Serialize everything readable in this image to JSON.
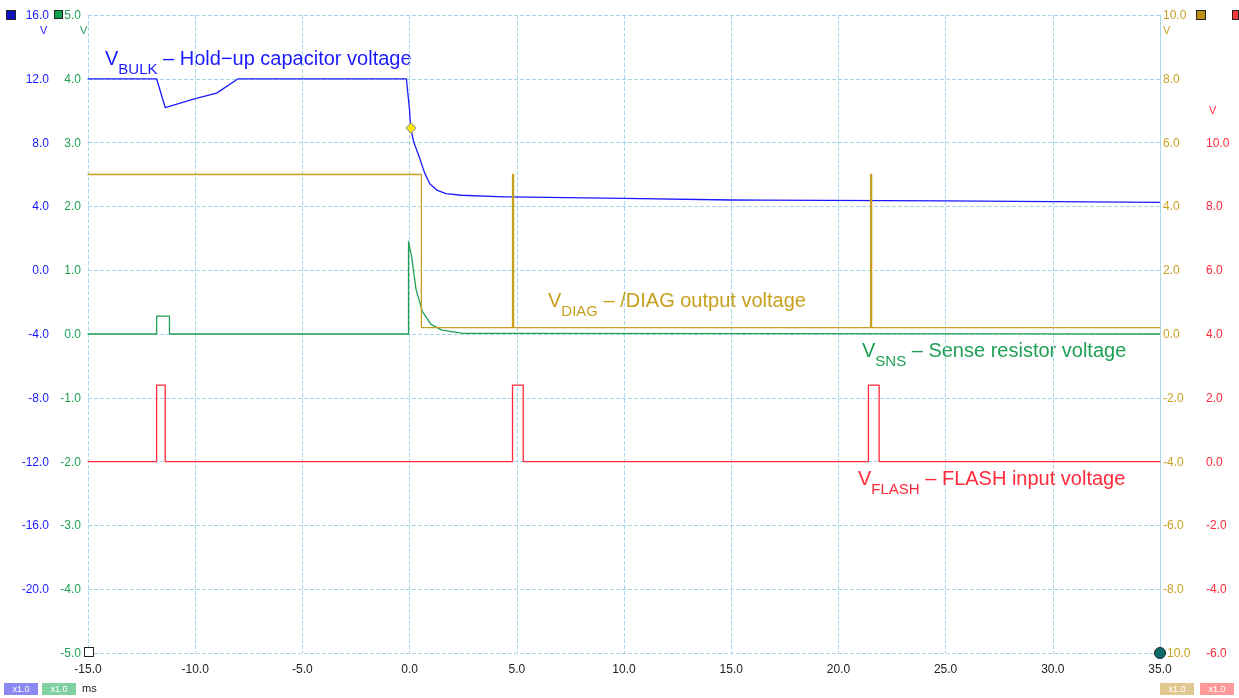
{
  "chart_data": [
    {
      "type": "line",
      "xlabel": "ms",
      "ylabel": "V",
      "y2label": "V",
      "xlim": [
        -15,
        35
      ],
      "xticks": [
        {
          "value": -15,
          "label": "-15.0"
        },
        {
          "value": -10,
          "label": "-10.0"
        },
        {
          "value": -5,
          "label": "-5.0"
        },
        {
          "value": 0,
          "label": "0.0"
        },
        {
          "value": 5,
          "label": "5.0"
        },
        {
          "value": 10,
          "label": "10.0"
        },
        {
          "value": 15,
          "label": "15.0"
        },
        {
          "value": 20,
          "label": "20.0"
        },
        {
          "value": 25,
          "label": "25.0"
        },
        {
          "value": 30,
          "label": "30.0"
        },
        {
          "value": 35,
          "label": "35.0"
        }
      ],
      "ylim": [
        -24,
        16
      ],
      "yticks": [
        {
          "value": -20,
          "label": "-20.0"
        },
        {
          "value": -16,
          "label": "-16.0"
        },
        {
          "value": -12,
          "label": "-12.0"
        },
        {
          "value": -8,
          "label": "-8.0"
        },
        {
          "value": -4,
          "label": "-4.0"
        },
        {
          "value": 0,
          "label": "0.0"
        },
        {
          "value": 4,
          "label": "4.0"
        },
        {
          "value": 8,
          "label": "8.0"
        },
        {
          "value": 12,
          "label": "12.0"
        },
        {
          "value": 16,
          "label": "16.0"
        }
      ],
      "y2lim": [
        -5,
        5
      ],
      "y2ticks": [
        {
          "value": -5,
          "label": "-5.0"
        },
        {
          "value": -4,
          "label": "-4.0"
        },
        {
          "value": -3,
          "label": "-3.0"
        },
        {
          "value": -2,
          "label": "-2.0"
        },
        {
          "value": -1,
          "label": "-1.0"
        },
        {
          "value": 0,
          "label": "0.0"
        },
        {
          "value": 1,
          "label": "1.0"
        },
        {
          "value": 2,
          "label": "2.0"
        },
        {
          "value": 3,
          "label": "3.0"
        },
        {
          "value": 4,
          "label": "4.0"
        },
        {
          "value": 5,
          "label": "5.0"
        }
      ],
      "grid": true,
      "legend": false,
      "marker": "none",
      "line_style": "solid",
      "annotations": [
        "x1.0",
        "x1.0"
      ],
      "series": [
        {
          "name": "V$_{BULK}$ – Hold−up capacitor voltage",
          "color": "#1a1aff",
          "x": [
            -15,
            -11.8,
            -11.4,
            -10,
            -9,
            -8,
            -0.15,
            0,
            0.05,
            0.2,
            0.45,
            0.7,
            0.95,
            1.3,
            1.7,
            2.4,
            4.4,
            10,
            15,
            25,
            35
          ],
          "values": [
            12,
            12,
            10.2,
            10.75,
            11.1,
            12,
            12,
            10,
            8.9,
            8,
            7.1,
            6.1,
            5.4,
            5,
            4.8,
            4.7,
            4.6,
            4.5,
            4.4,
            4.35,
            4.25
          ]
        },
        {
          "name": "V$_{SNS}$ – Sense resistor voltage",
          "color": "#1fa055",
          "axis": "y2",
          "x": [
            -15,
            -11.8,
            -11.8,
            -11.2,
            -11.2,
            -0.05,
            -0.05,
            0.1,
            0.3,
            0.6,
            1,
            1.5,
            2.5,
            35
          ],
          "values": [
            0,
            0,
            0.28,
            0.28,
            0,
            0,
            1.45,
            1.2,
            0.7,
            0.35,
            0.15,
            0.06,
            0.01,
            0
          ]
        }
      ]
    },
    {
      "type": "line",
      "ylabel": "V",
      "y2label": "V",
      "xlim": [
        -15,
        35
      ],
      "tick_labels": "y",
      "ylim": [
        -10,
        10
      ],
      "yticks": [
        {
          "value": -10,
          "label": "-10.0"
        },
        {
          "value": -8,
          "label": "-8.0"
        },
        {
          "value": -6,
          "label": "-6.0"
        },
        {
          "value": -4,
          "label": "-4.0"
        },
        {
          "value": -2,
          "label": "-2.0"
        },
        {
          "value": 0,
          "label": "0.0"
        },
        {
          "value": 2,
          "label": "2.0"
        },
        {
          "value": 4,
          "label": "4.0"
        },
        {
          "value": 6,
          "label": "6.0"
        },
        {
          "value": 8,
          "label": "8.0"
        },
        {
          "value": 10,
          "label": "10.0"
        }
      ],
      "y2lim": [
        -6,
        14
      ],
      "y2ticks": [
        {
          "value": -6,
          "label": "-6.0"
        },
        {
          "value": -4,
          "label": "-4.0"
        },
        {
          "value": -2,
          "label": "-2.0"
        },
        {
          "value": 0,
          "label": "0.0"
        },
        {
          "value": 2,
          "label": "2.0"
        },
        {
          "value": 4,
          "label": "4.0"
        },
        {
          "value": 6,
          "label": "6.0"
        },
        {
          "value": 8,
          "label": "8.0"
        },
        {
          "value": 10,
          "label": "10.0"
        }
      ],
      "legend": false,
      "marker": "none",
      "line_style": "solid",
      "annotations": [
        "x1.0",
        "x1.0"
      ],
      "series": [
        {
          "name": "V$_{DIAG}$ – /DIAG output voltage",
          "color": "#c8a020",
          "x": [
            -15,
            0.55,
            0.55,
            4.8,
            4.8,
            4.85,
            4.85,
            21.5,
            21.5,
            21.55,
            21.55,
            35
          ],
          "values": [
            5,
            5,
            0.2,
            0.2,
            5,
            5,
            0.2,
            0.2,
            5,
            5,
            0.2,
            0.2
          ]
        },
        {
          "name": "V$_{FLASH}$ – FLASH input voltage",
          "color": "#ff2a3a",
          "axis": "y2",
          "x": [
            -15,
            -11.8,
            -11.8,
            -11.4,
            -11.4,
            4.8,
            4.8,
            5.3,
            5.3,
            21.4,
            21.4,
            21.9,
            21.9,
            35
          ],
          "values": [
            0,
            0,
            2.4,
            2.4,
            0,
            0,
            2.4,
            2.4,
            0,
            0,
            2.4,
            2.4,
            0,
            0
          ]
        }
      ]
    }
  ]
}
